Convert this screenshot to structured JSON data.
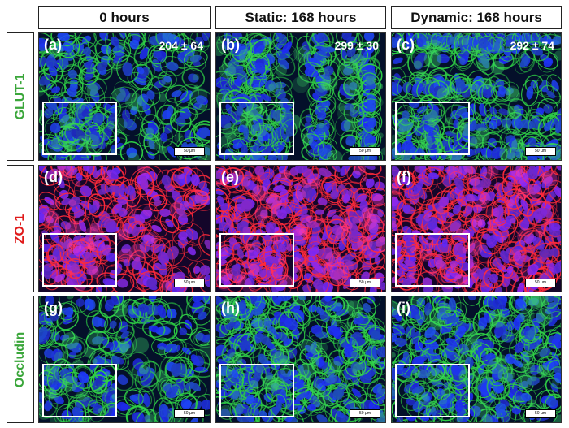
{
  "columns": [
    {
      "label": "0 hours"
    },
    {
      "label": "Static: 168 hours"
    },
    {
      "label": "Dynamic: 168 hours"
    }
  ],
  "rows": [
    {
      "label": "GLUT-1",
      "color": "#3aa63a",
      "stain": "green"
    },
    {
      "label": "ZO-1",
      "color": "#e01b1b",
      "stain": "red"
    },
    {
      "label": "Occludin",
      "color": "#3aa63a",
      "stain": "green"
    }
  ],
  "panels": [
    {
      "label": "(a)",
      "count": "204 ± 64"
    },
    {
      "label": "(b)",
      "count": "299 ± 30"
    },
    {
      "label": "(c)",
      "count": "292 ± 74"
    },
    {
      "label": "(d)",
      "count": ""
    },
    {
      "label": "(e)",
      "count": ""
    },
    {
      "label": "(f)",
      "count": ""
    },
    {
      "label": "(g)",
      "count": ""
    },
    {
      "label": "(h)",
      "count": ""
    },
    {
      "label": "(i)",
      "count": ""
    }
  ],
  "scalebar_label": "50 µm"
}
